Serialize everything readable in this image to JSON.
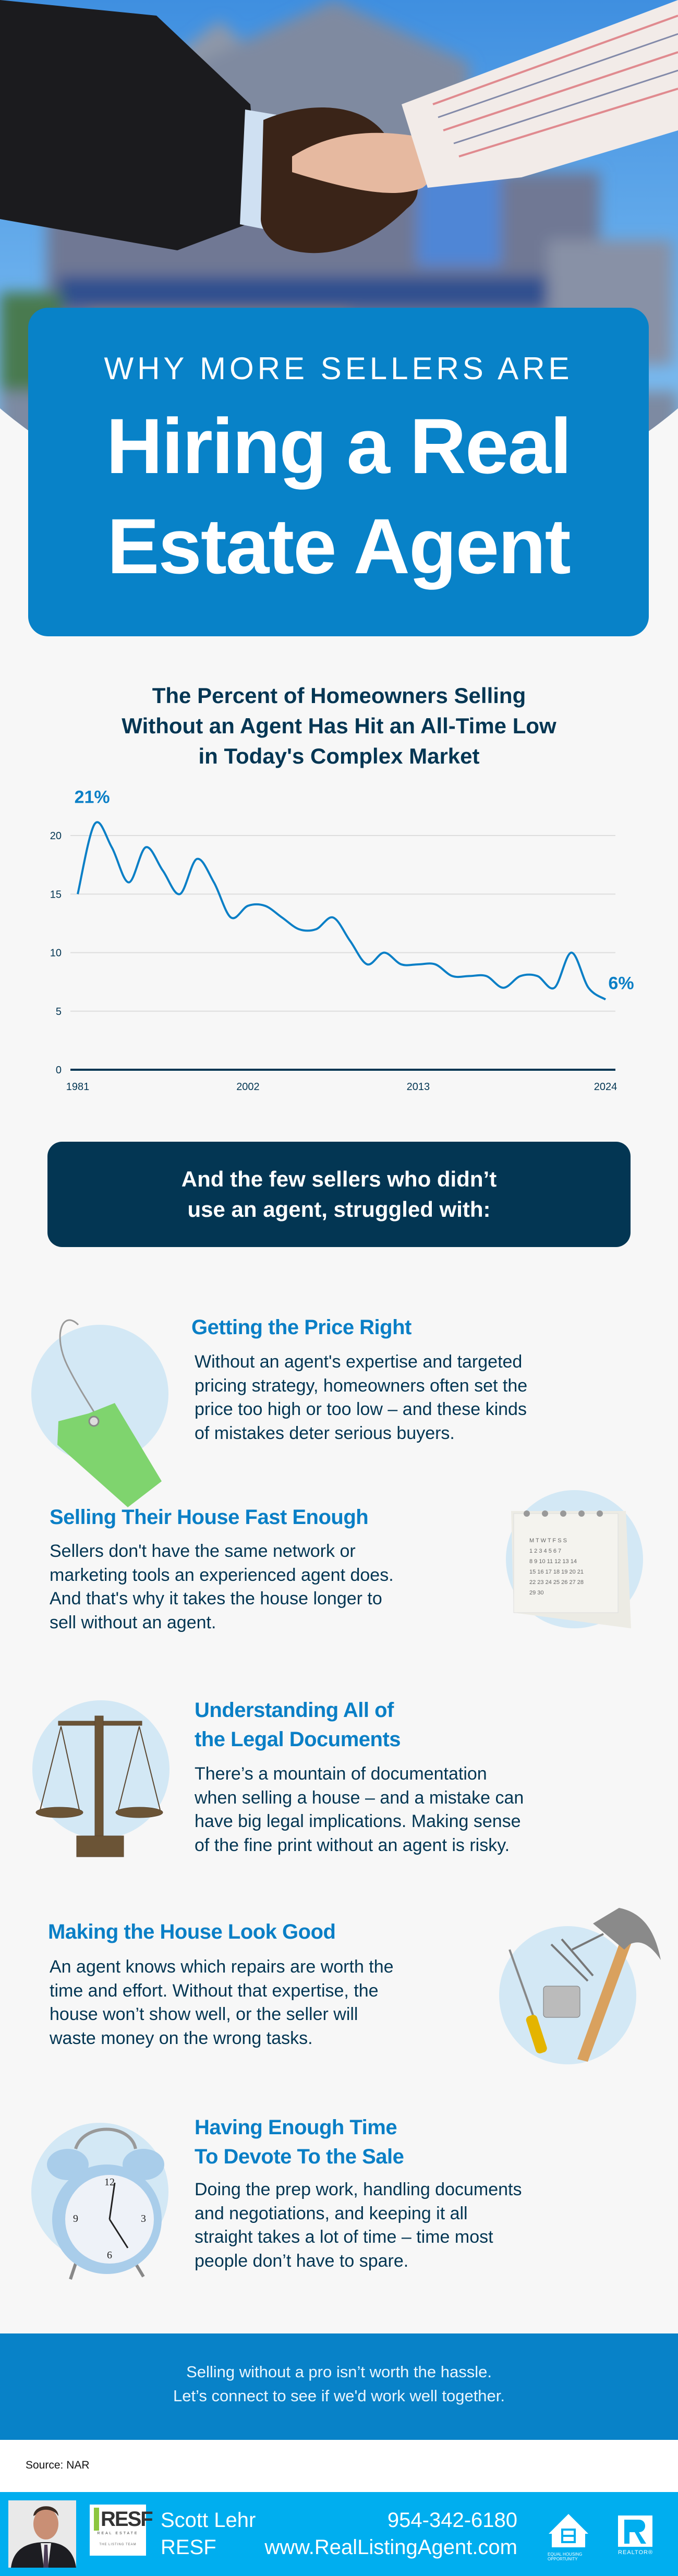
{
  "header": {
    "kicker": "WHY MORE SELLERS ARE",
    "title_line1": "Hiring a Real",
    "title_line2": "Estate Agent"
  },
  "colors": {
    "primary_blue": "#0882c8",
    "navy": "#033653",
    "light_circle": "#d3e8f5",
    "footer_blue": "#00aeef",
    "background": "#f7f7f7"
  },
  "chart_data": {
    "type": "line",
    "title_lines": [
      "The Percent of Homeowners Selling",
      "Without an Agent Has Hit an All-Time Low",
      "in Today's Complex Market"
    ],
    "values": [
      15,
      21,
      19,
      16,
      19,
      17,
      15,
      18,
      16,
      13,
      14,
      14,
      13,
      12,
      12,
      13,
      11,
      9,
      10,
      9,
      9,
      9,
      8,
      8,
      8,
      7,
      8,
      8,
      7,
      10,
      7,
      6
    ],
    "x_tick_labels": [
      {
        "index": 0,
        "label": "1981"
      },
      {
        "index": 10,
        "label": "2002"
      },
      {
        "index": 20,
        "label": "2013"
      },
      {
        "index": 31,
        "label": "2024"
      }
    ],
    "y_ticks": [
      0,
      5,
      10,
      15,
      20
    ],
    "ylim": [
      0,
      22
    ],
    "grid": true,
    "annotations": [
      {
        "index": 1,
        "value": 21,
        "label": "21%"
      },
      {
        "index": 31,
        "value": 6,
        "label": "6%"
      }
    ],
    "line_color": "#0a7fc6"
  },
  "struggles": {
    "intro_line1": "And the few sellers who didn’t",
    "intro_line2": "use an agent, struggled with:",
    "items": [
      {
        "icon": "price-tag-icon",
        "title_lines": [
          "Getting the Price Right"
        ],
        "body_lines": [
          "Without an agent's expertise and targeted",
          "pricing strategy, homeowners often set the",
          "price too high or too low – and these kinds",
          "of mistakes deter serious buyers."
        ]
      },
      {
        "icon": "calendar-icon",
        "title_lines": [
          "Selling Their House Fast Enough"
        ],
        "body_lines": [
          "Sellers don't have the same network or",
          "marketing tools an experienced agent does.",
          "And that's why it takes the house longer to",
          "sell without an agent."
        ]
      },
      {
        "icon": "scales-icon",
        "title_lines": [
          "Understanding All of",
          "the Legal Documents"
        ],
        "body_lines": [
          "There’s a mountain of documentation",
          "when selling a house – and a mistake can",
          "have big legal implications. Making sense",
          "of the fine print without an agent is risky."
        ]
      },
      {
        "icon": "tools-icon",
        "title_lines": [
          "Making the House Look Good"
        ],
        "body_lines": [
          "An agent knows which repairs are worth the",
          "time and effort. Without that expertise, the",
          "house won’t show well, or the seller will",
          "waste money on the wrong tasks."
        ]
      },
      {
        "icon": "alarm-clock-icon",
        "title_lines": [
          "Having Enough Time",
          "To Devote To the Sale"
        ],
        "body_lines": [
          "Doing the prep work, handling documents",
          "and negotiations, and keeping it all",
          "straight takes a lot of time – time most",
          "people don’t have to spare."
        ]
      }
    ]
  },
  "cta": {
    "line1": "Selling without a pro isn’t worth the hassle.",
    "line2": "Let’s connect to see if we'd work well together."
  },
  "source": "Source: NAR",
  "footer": {
    "agent_name": "Scott Lehr",
    "company": "RESF",
    "phone": "954-342-6180",
    "website": "www.RealListingAgent.com",
    "logo_text": "RESF",
    "logo_sub": "REAL ESTATE",
    "logo_team": "THE LISTING TEAM",
    "equal_housing": "EQUAL HOUSING OPPORTUNITY",
    "realtor": "REALTOR®"
  }
}
